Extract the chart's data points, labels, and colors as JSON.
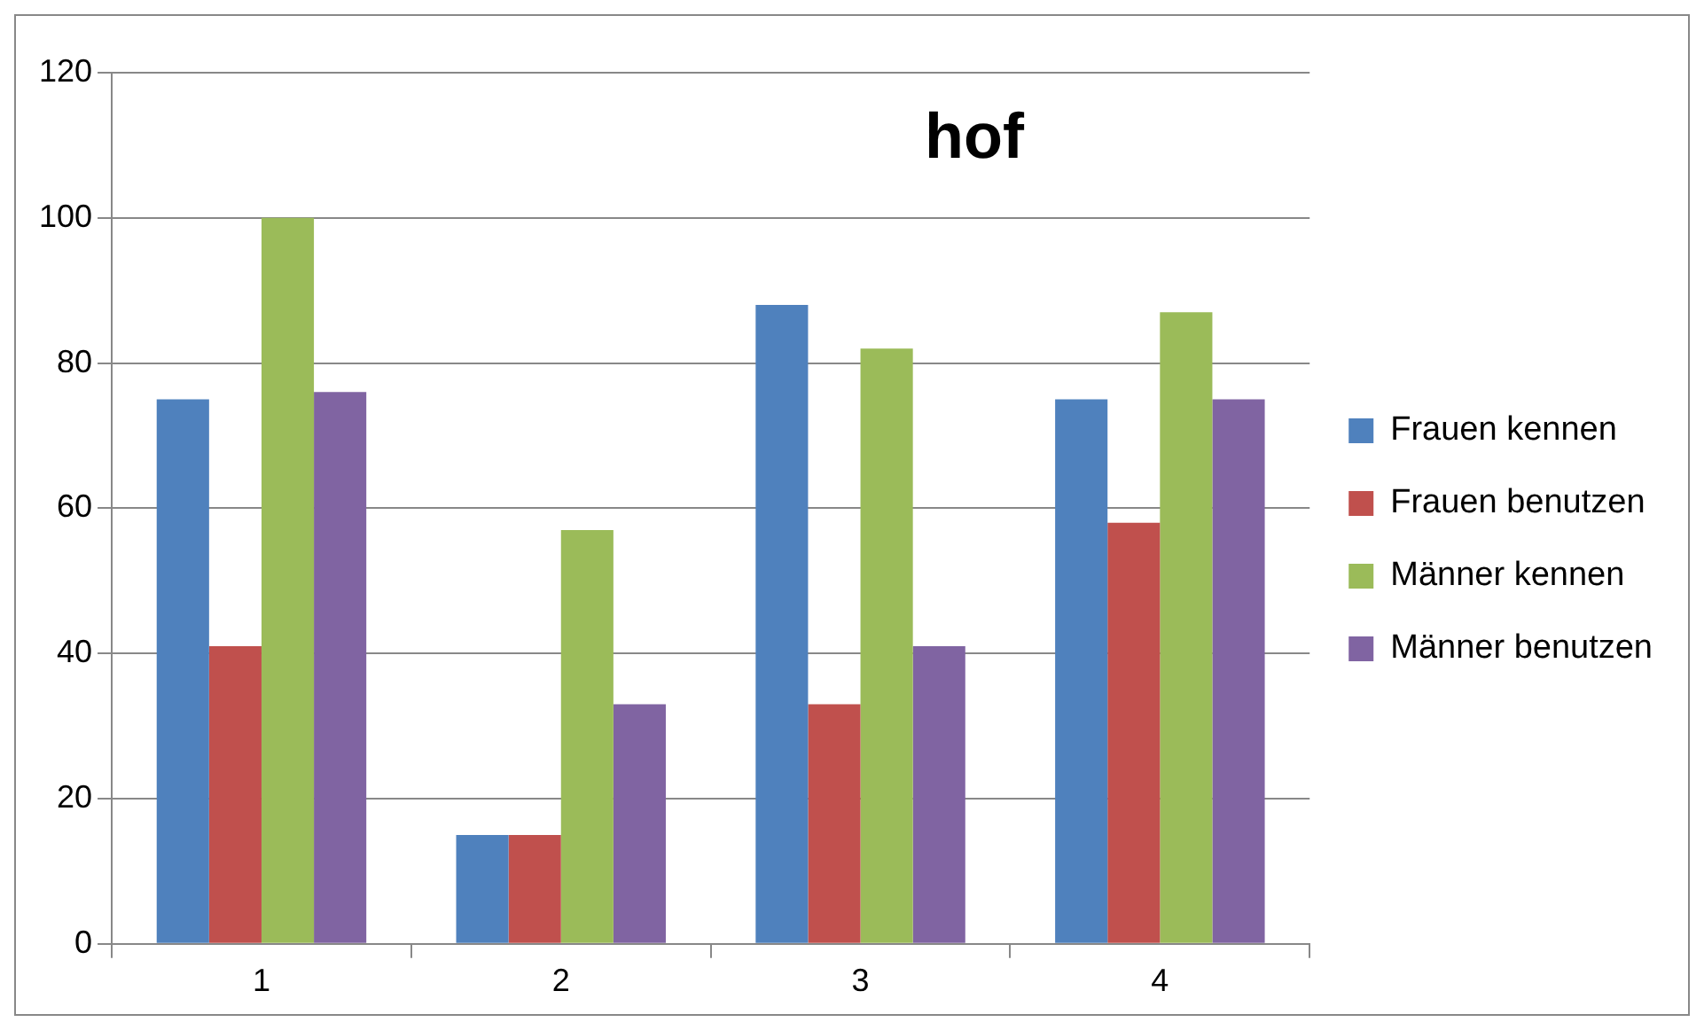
{
  "chart_data": {
    "type": "bar",
    "title": "hof",
    "categories": [
      "1",
      "2",
      "3",
      "4"
    ],
    "series": [
      {
        "name": "Frauen kennen",
        "color": "#4f81bd",
        "values": [
          75,
          15,
          88,
          75
        ]
      },
      {
        "name": "Frauen benutzen",
        "color": "#c0504d",
        "values": [
          41,
          15,
          33,
          58
        ]
      },
      {
        "name": "Männer kennen",
        "color": "#9bbb59",
        "values": [
          100,
          57,
          82,
          87
        ]
      },
      {
        "name": "Männer benutzen",
        "color": "#8064a2",
        "values": [
          76,
          33,
          41,
          75
        ]
      }
    ],
    "ylim": [
      0,
      120
    ],
    "yticks": [
      0,
      20,
      40,
      60,
      80,
      100,
      120
    ],
    "grid": "y",
    "legend": "right"
  }
}
